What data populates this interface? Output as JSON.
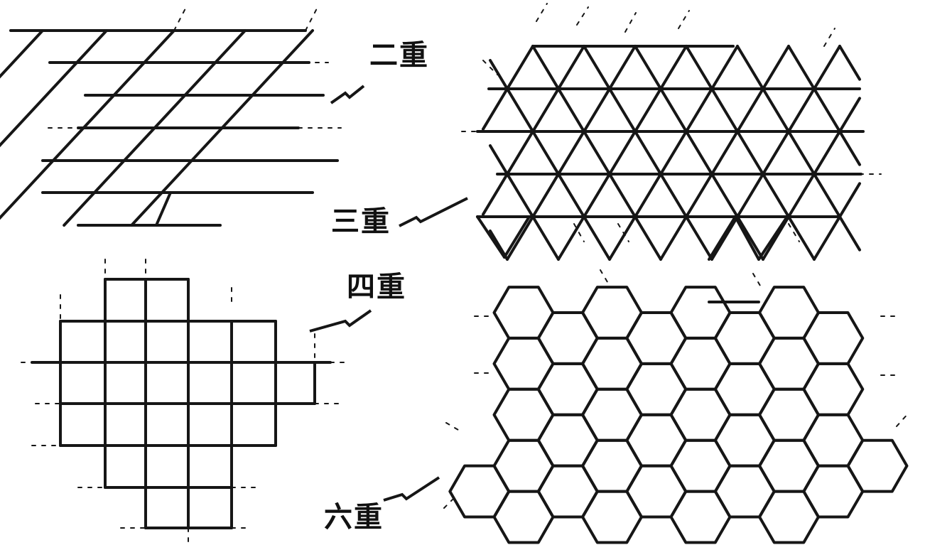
{
  "labels": {
    "twofold": "二重",
    "threefold": "三重",
    "fourfold": "四重",
    "sixfold": "六重"
  },
  "colors": {
    "line": "#161616",
    "background": "#ffffff"
  }
}
